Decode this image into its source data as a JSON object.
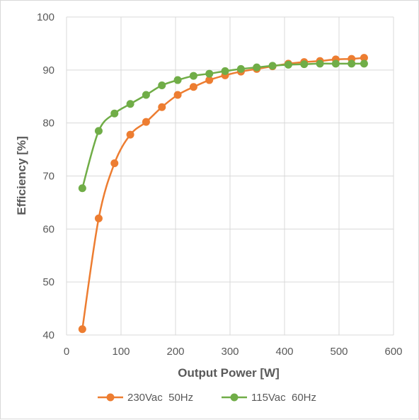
{
  "chart_data": {
    "type": "line",
    "xlabel": "Output Power [W]",
    "ylabel": "Efficiency [%]",
    "xlim": [
      0,
      600
    ],
    "ylim": [
      40,
      100
    ],
    "xticks": [
      0,
      100,
      200,
      300,
      400,
      500,
      600
    ],
    "yticks": [
      40,
      50,
      60,
      70,
      80,
      90,
      100
    ],
    "grid": true,
    "legend_position": "bottom",
    "series": [
      {
        "name": "230Vac  50Hz",
        "color": "#ed7d31",
        "x": [
          29,
          59,
          88,
          117,
          146,
          175,
          204,
          233,
          262,
          291,
          320,
          349,
          378,
          407,
          436,
          465,
          494,
          523,
          546
        ],
        "y": [
          41.1,
          62.0,
          72.4,
          77.8,
          80.2,
          83.0,
          85.3,
          86.8,
          88.1,
          89.0,
          89.7,
          90.2,
          90.7,
          91.2,
          91.5,
          91.7,
          92.0,
          92.1,
          92.3
        ]
      },
      {
        "name": "115Vac  60Hz",
        "color": "#70ad47",
        "x": [
          29,
          59,
          88,
          117,
          146,
          175,
          204,
          233,
          262,
          291,
          320,
          349,
          378,
          407,
          436,
          465,
          494,
          523,
          546
        ],
        "y": [
          67.7,
          78.5,
          81.8,
          83.6,
          85.3,
          87.1,
          88.1,
          88.9,
          89.3,
          89.8,
          90.2,
          90.5,
          90.8,
          91.0,
          91.1,
          91.2,
          91.2,
          91.2,
          91.2
        ]
      }
    ]
  }
}
